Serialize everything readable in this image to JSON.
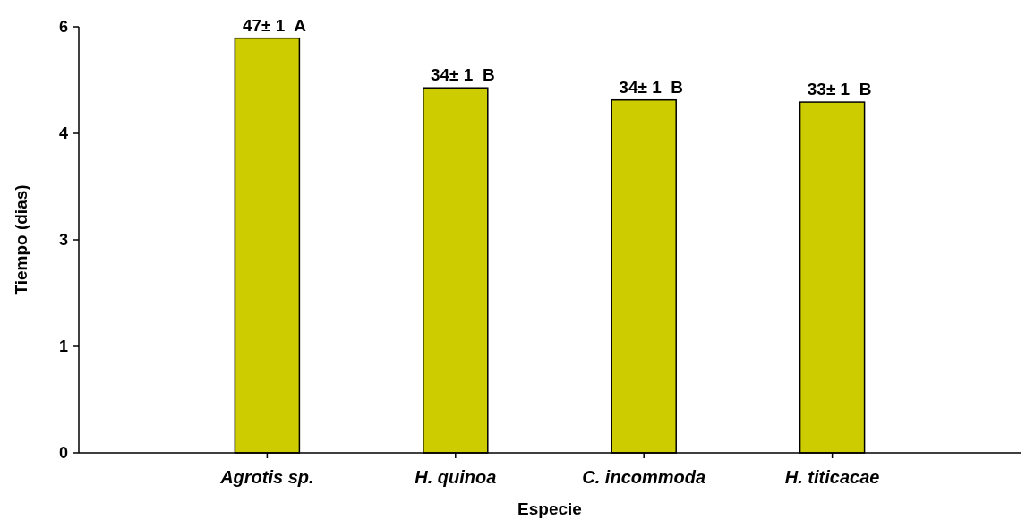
{
  "chart_data": {
    "type": "bar",
    "xlabel": "Especie",
    "ylabel": "Tiempo (dias)",
    "categories": [
      "Agrotis sp.",
      "H. quinoa",
      "C. incommoda",
      "H. titicacae"
    ],
    "values": [
      5.84,
      5.14,
      4.97,
      4.94
    ],
    "annotations": [
      {
        "text": "47± 1  A",
        "x": "Agrotis sp.",
        "y": 5.84
      },
      {
        "text": "34± 1  B",
        "x": "H. quinoa",
        "y": 5.14
      },
      {
        "text": "34± 1  B",
        "x": "C. incommoda",
        "y": 4.97
      },
      {
        "text": "33± 1  B",
        "x": "H. titicacae",
        "y": 4.94
      }
    ],
    "color": "#cccc00",
    "ylim": [
      0,
      6
    ],
    "yticks": [
      0,
      {
        "value": 1.5,
        "label": "1"
      },
      3,
      {
        "value": 4.5,
        "label": "4"
      },
      6
    ],
    "grid": false
  }
}
